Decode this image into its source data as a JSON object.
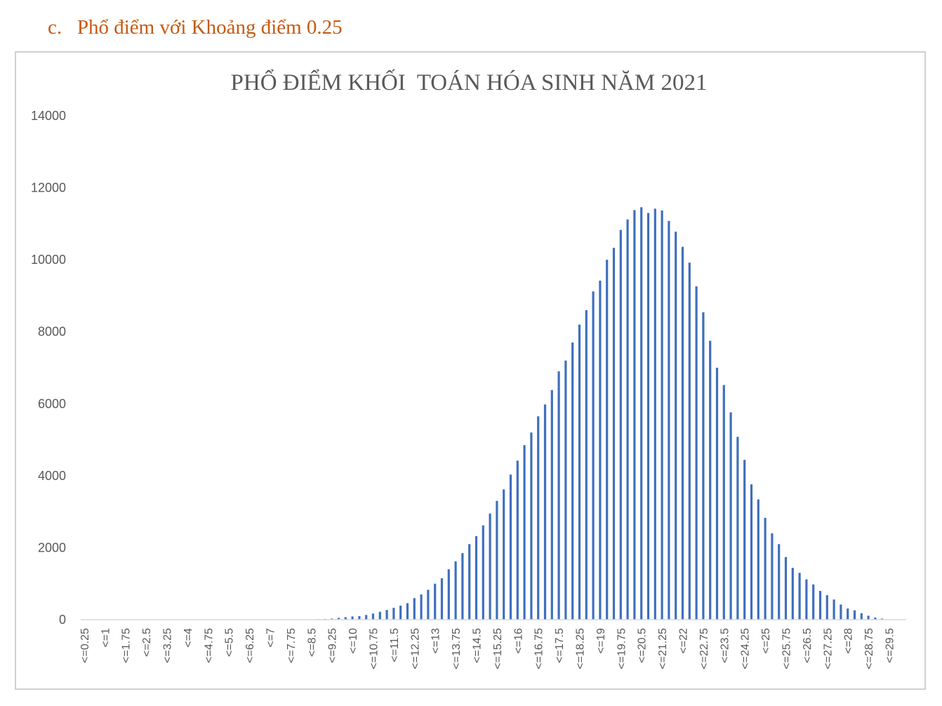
{
  "heading": "c.   Phổ điểm với Khoảng điểm 0.25",
  "chart_data": {
    "type": "bar",
    "title": "PHỔ ĐIỂM KHỐI  TOÁN HÓA SINH NĂM 2021",
    "categories": [
      "<=0.25",
      null,
      null,
      "<=1",
      null,
      null,
      "<=1.75",
      null,
      null,
      "<=2.5",
      null,
      null,
      "<=3.25",
      null,
      null,
      "<=4",
      null,
      null,
      "<=4.75",
      null,
      null,
      "<=5.5",
      null,
      null,
      "<=6.25",
      null,
      null,
      "<=7",
      null,
      null,
      "<=7.75",
      null,
      null,
      "<=8.5",
      null,
      null,
      "<=9.25",
      null,
      null,
      "<=10",
      null,
      null,
      "<=10.75",
      null,
      null,
      "<=11.5",
      null,
      null,
      "<=12.25",
      null,
      null,
      "<=13",
      null,
      null,
      "<=13.75",
      null,
      null,
      "<=14.5",
      null,
      null,
      "<=15.25",
      null,
      null,
      "<=16",
      null,
      null,
      "<=16.75",
      null,
      null,
      "<=17.5",
      null,
      null,
      "<=18.25",
      null,
      null,
      "<=19",
      null,
      null,
      "<=19.75",
      null,
      null,
      "<=20.5",
      null,
      null,
      "<=21.25",
      null,
      null,
      "<=22",
      null,
      null,
      "<=22.75",
      null,
      null,
      "<=23.5",
      null,
      null,
      "<=24.25",
      null,
      null,
      "<=25",
      null,
      null,
      "<=25.75",
      null,
      null,
      "<=26.5",
      null,
      null,
      "<=27.25",
      null,
      null,
      "<=28",
      null,
      null,
      "<=28.75",
      null,
      null,
      "<=29.5",
      null,
      null
    ],
    "values": [
      0,
      0,
      0,
      0,
      0,
      0,
      0,
      0,
      0,
      0,
      0,
      0,
      0,
      0,
      0,
      0,
      0,
      0,
      0,
      0,
      0,
      0,
      0,
      0,
      0,
      0,
      0,
      0,
      0,
      0,
      0,
      0,
      0,
      10,
      15,
      20,
      30,
      50,
      70,
      90,
      100,
      130,
      170,
      220,
      270,
      330,
      390,
      460,
      600,
      700,
      830,
      1000,
      1150,
      1400,
      1620,
      1850,
      2100,
      2320,
      2620,
      2950,
      3300,
      3620,
      4030,
      4420,
      4850,
      5200,
      5650,
      5980,
      6380,
      6900,
      7200,
      7700,
      8200,
      8600,
      9120,
      9420,
      10000,
      10330,
      10830,
      11120,
      11380,
      11460,
      11300,
      11420,
      11370,
      11080,
      10780,
      10360,
      9920,
      9260,
      8540,
      7750,
      7000,
      6520,
      5760,
      5080,
      4440,
      3760,
      3340,
      2830,
      2400,
      2100,
      1740,
      1440,
      1300,
      1120,
      980,
      800,
      680,
      560,
      420,
      310,
      260,
      180,
      110,
      60,
      30,
      10,
      0,
      0
    ],
    "color": "#3f6fbd",
    "ylim": [
      0,
      14000
    ],
    "yticks": [
      0,
      2000,
      4000,
      6000,
      8000,
      10000,
      12000,
      14000
    ],
    "grid": false
  }
}
